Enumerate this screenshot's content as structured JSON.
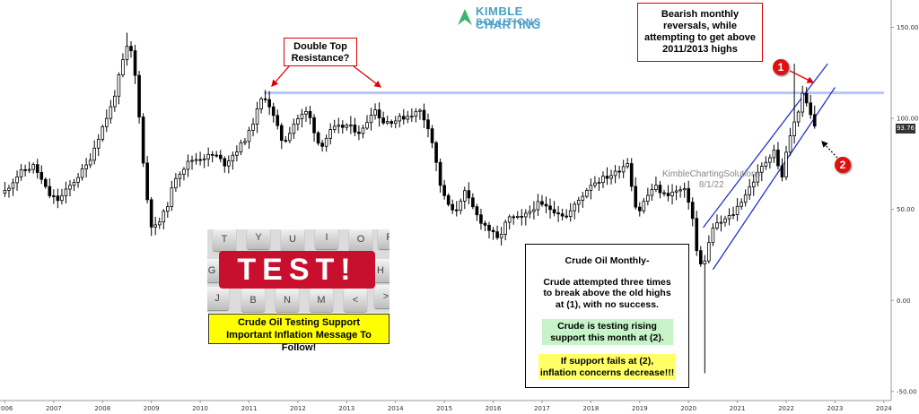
{
  "logo": {
    "line1": "KIMBLE CHARTING",
    "line2": "SOLUTIONS"
  },
  "watermark": {
    "line1": "KimbleChartingSolutions",
    "line2": "8/1/22"
  },
  "annotations": {
    "double_top_line1": "Double Top",
    "double_top_line2": "Resistance?",
    "bearish_line1": "Bearish monthly",
    "bearish_line2": "reversals, while",
    "bearish_line3": "attempting to get above",
    "bearish_line4": "2011/2013 highs",
    "marker1": "1",
    "marker2": "2"
  },
  "test_image": {
    "word": "TEST!",
    "keys": [
      "T",
      "Y",
      "U",
      "I",
      "O",
      "P",
      "G",
      "H",
      "J",
      "K",
      "B",
      "N",
      "M",
      "<",
      ">"
    ],
    "banner_line1": "Crude Oil Testing Support",
    "banner_line2": "Important Inflation Message To Follow!"
  },
  "info_box": {
    "title": "Crude Oil Monthly-",
    "body_line1": "Crude attempted three times",
    "body_line2": "to break above the old highs",
    "body_line3": "at (1), with no success.",
    "green_line1": "Crude is testing rising",
    "green_line2": "support this month at (2).",
    "yellow_line1": "If support fails at (2),",
    "yellow_line2": "inflation concerns decrease!!!"
  },
  "price_label": "93.76",
  "colors": {
    "candle_up": "#ffffff",
    "candle_down": "#000000",
    "resistance_line": "#b8c4ff",
    "channel_lines": "#2233cc",
    "annotation_red": "#dd0000",
    "logo": "#4aa0c8"
  },
  "chart_data": {
    "type": "candlestick",
    "instrument": "Crude Oil",
    "interval": "monthly",
    "x_ticks": [
      "2006",
      "2007",
      "2008",
      "2009",
      "2010",
      "2011",
      "2012",
      "2013",
      "2014",
      "2015",
      "2016",
      "2017",
      "2018",
      "2019",
      "2020",
      "2021",
      "2022",
      "2023",
      "2024"
    ],
    "y_ticks": [
      "150.00",
      "100.00",
      "50.00",
      "0.00",
      "-50.00"
    ],
    "y_tick_values": [
      150,
      100,
      50,
      0,
      -50
    ],
    "xlim": [
      2005.9,
      2024.15
    ],
    "ylim": [
      -55,
      165
    ],
    "last_price": 93.76,
    "resistance_level": 114,
    "price_anchors": [
      [
        2006.0,
        60
      ],
      [
        2006.3,
        70
      ],
      [
        2006.6,
        74
      ],
      [
        2006.9,
        58
      ],
      [
        2007.1,
        55
      ],
      [
        2007.4,
        65
      ],
      [
        2007.7,
        75
      ],
      [
        2007.95,
        92
      ],
      [
        2008.2,
        108
      ],
      [
        2008.45,
        135
      ],
      [
        2008.55,
        142
      ],
      [
        2008.7,
        118
      ],
      [
        2008.85,
        70
      ],
      [
        2008.98,
        42
      ],
      [
        2009.1,
        40
      ],
      [
        2009.3,
        50
      ],
      [
        2009.5,
        68
      ],
      [
        2009.8,
        77
      ],
      [
        2010.3,
        80
      ],
      [
        2010.5,
        75
      ],
      [
        2010.8,
        84
      ],
      [
        2011.0,
        92
      ],
      [
        2011.25,
        110
      ],
      [
        2011.35,
        112
      ],
      [
        2011.7,
        86
      ],
      [
        2011.95,
        99
      ],
      [
        2012.2,
        104
      ],
      [
        2012.45,
        84
      ],
      [
        2012.7,
        94
      ],
      [
        2013.0,
        96
      ],
      [
        2013.3,
        92
      ],
      [
        2013.55,
        106
      ],
      [
        2013.75,
        98
      ],
      [
        2014.0,
        99
      ],
      [
        2014.5,
        104
      ],
      [
        2014.7,
        94
      ],
      [
        2014.95,
        59
      ],
      [
        2015.2,
        47
      ],
      [
        2015.4,
        60
      ],
      [
        2015.7,
        45
      ],
      [
        2015.95,
        38
      ],
      [
        2016.1,
        33
      ],
      [
        2016.3,
        45
      ],
      [
        2016.6,
        45
      ],
      [
        2016.9,
        53
      ],
      [
        2017.3,
        49
      ],
      [
        2017.5,
        46
      ],
      [
        2017.75,
        55
      ],
      [
        2018.0,
        64
      ],
      [
        2018.5,
        70
      ],
      [
        2018.75,
        76
      ],
      [
        2018.95,
        47
      ],
      [
        2019.1,
        55
      ],
      [
        2019.3,
        63
      ],
      [
        2019.5,
        58
      ],
      [
        2019.9,
        61
      ],
      [
        2020.05,
        52
      ],
      [
        2020.2,
        20
      ],
      [
        2020.3,
        19
      ],
      [
        2020.5,
        40
      ],
      [
        2020.9,
        47
      ],
      [
        2021.2,
        60
      ],
      [
        2021.5,
        73
      ],
      [
        2021.75,
        83
      ],
      [
        2021.9,
        66
      ],
      [
        2022.05,
        88
      ],
      [
        2022.2,
        100
      ],
      [
        2022.35,
        114
      ],
      [
        2022.45,
        105
      ],
      [
        2022.55,
        98
      ],
      [
        2022.62,
        93.76
      ]
    ],
    "wick_extremes": [
      {
        "x": 2008.5,
        "high": 147
      },
      {
        "x": 2020.3,
        "low": -40
      },
      {
        "x": 2022.2,
        "high": 130
      }
    ],
    "resistance_line": {
      "y": 114,
      "x_start": 2011.3,
      "x_end": 2024.0
    },
    "rising_channel": {
      "upper": [
        [
          2020.3,
          40
        ],
        [
          2022.85,
          130
        ]
      ],
      "lower": [
        [
          2020.5,
          17
        ],
        [
          2023.0,
          117
        ]
      ]
    }
  }
}
